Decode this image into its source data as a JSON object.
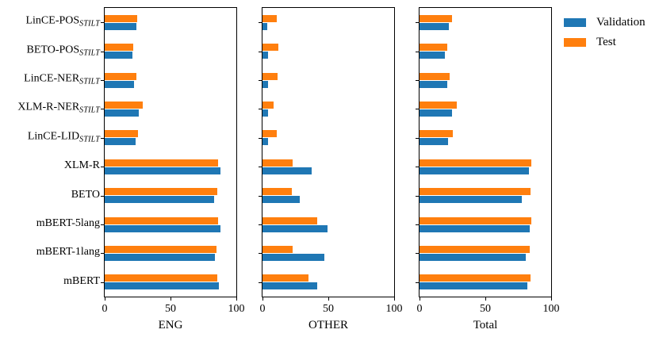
{
  "legend": {
    "items": [
      {
        "label": "Validation",
        "color": "#1f77b4"
      },
      {
        "label": "Test",
        "color": "#ff7f0e"
      }
    ]
  },
  "chart_data": {
    "type": "bar",
    "orientation": "horizontal",
    "grid": false,
    "legend_position": "upper right outside",
    "xlim": [
      0,
      100
    ],
    "xticks": [
      0,
      50,
      100
    ],
    "categories_top_to_bottom": [
      {
        "text": "LinCE-POS",
        "sub": "STILT"
      },
      {
        "text": "BETO-POS",
        "sub": "STILT"
      },
      {
        "text": "LinCE-NER",
        "sub": "STILT"
      },
      {
        "text": "XLM-R-NER",
        "sub": "STILT"
      },
      {
        "text": "LinCE-LID",
        "sub": "STILT"
      },
      {
        "text": "XLM-R",
        "sub": ""
      },
      {
        "text": "BETO",
        "sub": ""
      },
      {
        "text": "mBERT-5lang",
        "sub": ""
      },
      {
        "text": "mBERT-1lang",
        "sub": ""
      },
      {
        "text": "mBERT",
        "sub": ""
      }
    ],
    "subplots": [
      {
        "xlabel": "ENG",
        "series": [
          {
            "name": "Validation",
            "color": "#1f77b4",
            "values": [
              24,
              21,
              22.5,
              26,
              23.5,
              88,
              83,
              88,
              84,
              86.5
            ]
          },
          {
            "name": "Test",
            "color": "#ff7f0e",
            "values": [
              24.5,
              21.5,
              24,
              29,
              25.5,
              86,
              85.5,
              86,
              85,
              85.5
            ]
          }
        ]
      },
      {
        "xlabel": "OTHER",
        "series": [
          {
            "name": "Validation",
            "color": "#1f77b4",
            "values": [
              3.5,
              4.5,
              4,
              4.5,
              4,
              37.5,
              28.5,
              49.5,
              47,
              41.5
            ]
          },
          {
            "name": "Test",
            "color": "#ff7f0e",
            "values": [
              11,
              12,
              11.5,
              8.5,
              11,
              23,
              22,
              41.5,
              23,
              35
            ]
          }
        ]
      },
      {
        "xlabel": "Total",
        "series": [
          {
            "name": "Validation",
            "color": "#1f77b4",
            "values": [
              22,
              19.5,
              21,
              24.5,
              21.5,
              83,
              77.5,
              84,
              80.5,
              82
            ]
          },
          {
            "name": "Test",
            "color": "#ff7f0e",
            "values": [
              24.5,
              21,
              23,
              28.5,
              25,
              85,
              84.5,
              85,
              83.5,
              84.5
            ]
          }
        ]
      }
    ]
  }
}
